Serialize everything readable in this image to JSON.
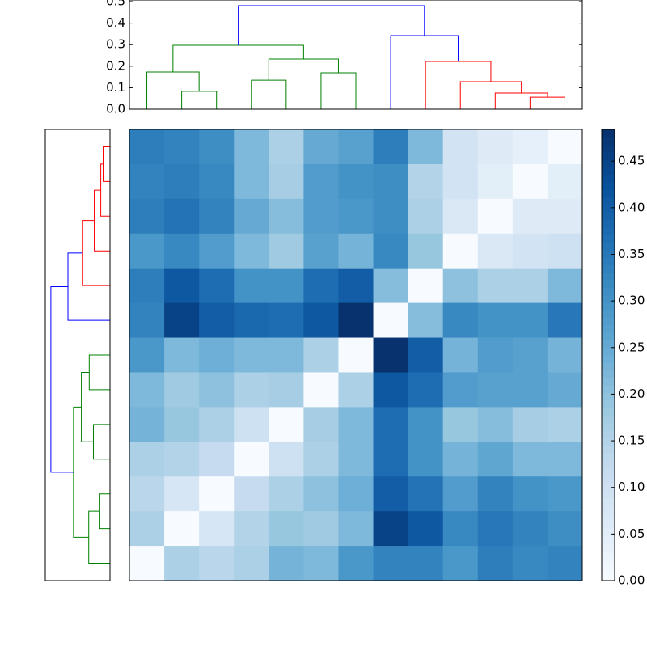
{
  "chart_data": [
    {
      "type": "dendrogram",
      "ylim": [
        0,
        0.5
      ],
      "yticks": [
        {
          "value": 0,
          "label": "0.0"
        },
        0.1,
        0.2,
        0.3,
        0.4,
        0.5
      ],
      "links": [
        {
          "children": [
            1,
            2
          ],
          "height": 0.083,
          "color": "#008000"
        },
        {
          "children": [
            0,
            13
          ],
          "height": 0.173,
          "color": "#008000"
        },
        {
          "children": [
            3,
            4
          ],
          "height": 0.135,
          "color": "#008000"
        },
        {
          "children": [
            5,
            6
          ],
          "height": 0.169,
          "color": "#008000"
        },
        {
          "children": [
            15,
            16
          ],
          "height": 0.233,
          "color": "#008000"
        },
        {
          "children": [
            14,
            17
          ],
          "height": 0.297,
          "color": "#008000"
        },
        {
          "children": [
            11,
            12
          ],
          "height": 0.056,
          "color": "#ff0000"
        },
        {
          "children": [
            10,
            19
          ],
          "height": 0.075,
          "color": "#ff0000"
        },
        {
          "children": [
            9,
            20
          ],
          "height": 0.128,
          "color": "#ff0000"
        },
        {
          "children": [
            8,
            21
          ],
          "height": 0.222,
          "color": "#ff0000"
        },
        {
          "children": [
            7,
            22
          ],
          "height": 0.342,
          "color": "#0000ff"
        },
        {
          "children": [
            18,
            23
          ],
          "height": 0.481,
          "color": "#0000ff"
        }
      ]
    },
    {
      "type": "heatmap",
      "colorbar_lim": [
        0,
        0.484
      ],
      "colorbar_ticks": [
        {
          "value": 0,
          "label": "0.00"
        },
        0.05,
        {
          "value": 0.1,
          "label": "0.10"
        },
        0.15,
        {
          "value": 0.2,
          "label": "0.20"
        },
        0.25,
        {
          "value": 0.3,
          "label": "0.30"
        },
        0.35,
        {
          "value": 0.4,
          "label": "0.40"
        },
        0.45
      ],
      "colormap": [
        "#f7fbff",
        "#deebf7",
        "#c6dbef",
        "#9ecae1",
        "#6baed6",
        "#4292c6",
        "#2171b5",
        "#08519c",
        "#08306b"
      ],
      "values": [
        [
          0.34,
          0.33,
          0.31,
          0.22,
          0.16,
          0.25,
          0.27,
          0.34,
          0.22,
          0.09,
          0.06,
          0.04,
          0.0
        ],
        [
          0.33,
          0.34,
          0.32,
          0.22,
          0.17,
          0.28,
          0.3,
          0.31,
          0.15,
          0.09,
          0.05,
          0.0,
          0.05
        ],
        [
          0.34,
          0.36,
          0.33,
          0.25,
          0.21,
          0.28,
          0.29,
          0.31,
          0.16,
          0.07,
          0.0,
          0.06,
          0.06
        ],
        [
          0.29,
          0.32,
          0.28,
          0.22,
          0.18,
          0.27,
          0.23,
          0.32,
          0.19,
          0.0,
          0.07,
          0.09,
          0.1
        ],
        [
          0.34,
          0.41,
          0.37,
          0.3,
          0.3,
          0.37,
          0.4,
          0.21,
          0.0,
          0.2,
          0.16,
          0.16,
          0.22
        ],
        [
          0.33,
          0.45,
          0.4,
          0.38,
          0.37,
          0.41,
          0.48,
          0.0,
          0.21,
          0.32,
          0.3,
          0.3,
          0.35
        ],
        [
          0.29,
          0.22,
          0.24,
          0.22,
          0.22,
          0.16,
          0.0,
          0.48,
          0.4,
          0.23,
          0.28,
          0.27,
          0.23
        ],
        [
          0.22,
          0.18,
          0.2,
          0.16,
          0.17,
          0.0,
          0.16,
          0.41,
          0.37,
          0.28,
          0.27,
          0.27,
          0.25
        ],
        [
          0.23,
          0.19,
          0.16,
          0.1,
          0.0,
          0.17,
          0.22,
          0.37,
          0.3,
          0.19,
          0.21,
          0.17,
          0.16
        ],
        [
          0.16,
          0.15,
          0.12,
          0.0,
          0.1,
          0.16,
          0.22,
          0.37,
          0.3,
          0.23,
          0.26,
          0.22,
          0.22
        ],
        [
          0.14,
          0.08,
          0.0,
          0.12,
          0.16,
          0.2,
          0.24,
          0.4,
          0.36,
          0.28,
          0.33,
          0.3,
          0.29
        ],
        [
          0.16,
          0.0,
          0.08,
          0.15,
          0.19,
          0.18,
          0.22,
          0.45,
          0.41,
          0.32,
          0.35,
          0.33,
          0.31
        ],
        [
          0.0,
          0.16,
          0.14,
          0.16,
          0.23,
          0.22,
          0.29,
          0.33,
          0.33,
          0.29,
          0.34,
          0.32,
          0.33
        ]
      ]
    }
  ]
}
